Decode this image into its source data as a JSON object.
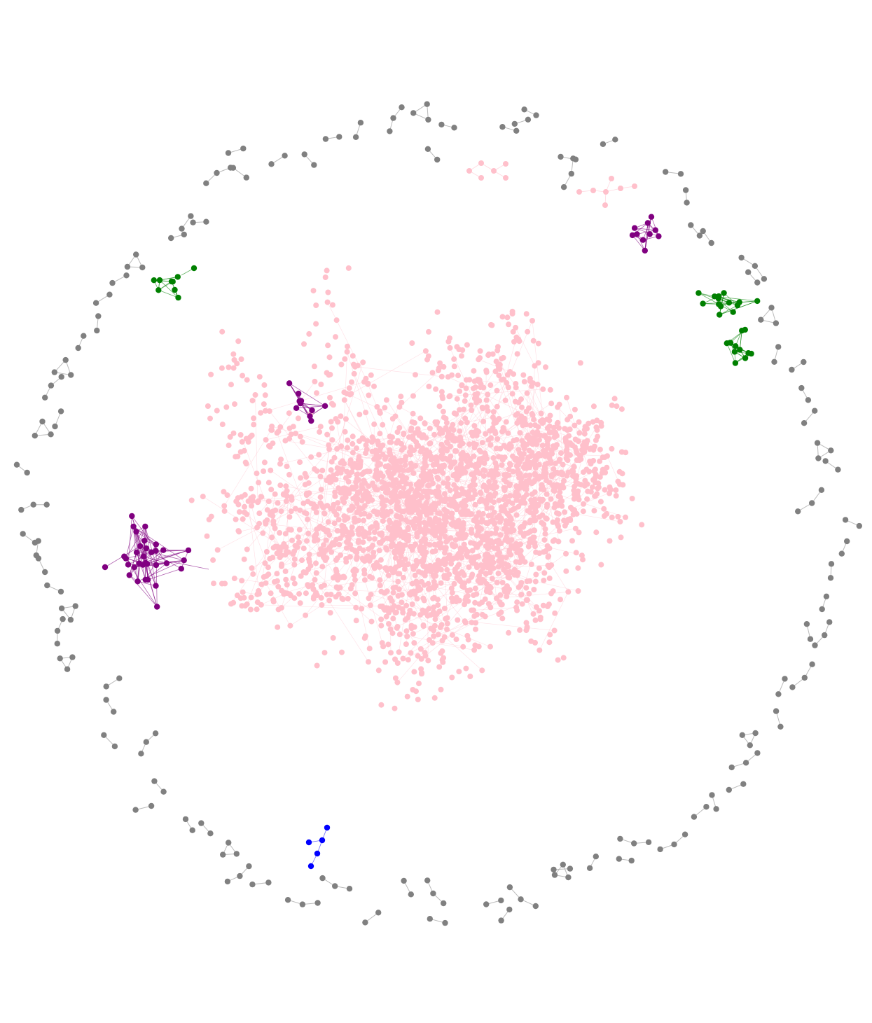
{
  "diagram": {
    "type": "network-graph",
    "background": "#ffffff",
    "node_colors": {
      "giant_component": "#ffc0cb",
      "small_pink_components": "#ffc0cb",
      "purple_clusters": "#800080",
      "green_clusters": "#008000",
      "blue_cluster": "#0000ff",
      "isolated_pairs_and_triads": "#808080"
    },
    "edge_color": "#b4b4b4",
    "components": [
      {
        "name": "giant-component",
        "color": "pink",
        "approx_nodes": 2000
      },
      {
        "name": "purple-cluster-left",
        "color": "purple",
        "approx_nodes": 30
      },
      {
        "name": "purple-cluster-center",
        "color": "purple",
        "approx_nodes": 10
      },
      {
        "name": "purple-cluster-top-right",
        "color": "purple",
        "approx_nodes": 10
      },
      {
        "name": "green-cluster-right",
        "color": "green",
        "approx_nodes": 26
      },
      {
        "name": "green-cluster-left",
        "color": "green",
        "approx_nodes": 10
      },
      {
        "name": "blue-cluster-bottom",
        "color": "blue",
        "approx_nodes": 5
      },
      {
        "name": "pink-path-top",
        "color": "pink",
        "approx_nodes": 6
      },
      {
        "name": "pink-path-top-right",
        "color": "pink",
        "approx_nodes": 7
      },
      {
        "name": "gray-small-components-ring",
        "color": "gray",
        "approx_nodes": 220
      }
    ]
  }
}
